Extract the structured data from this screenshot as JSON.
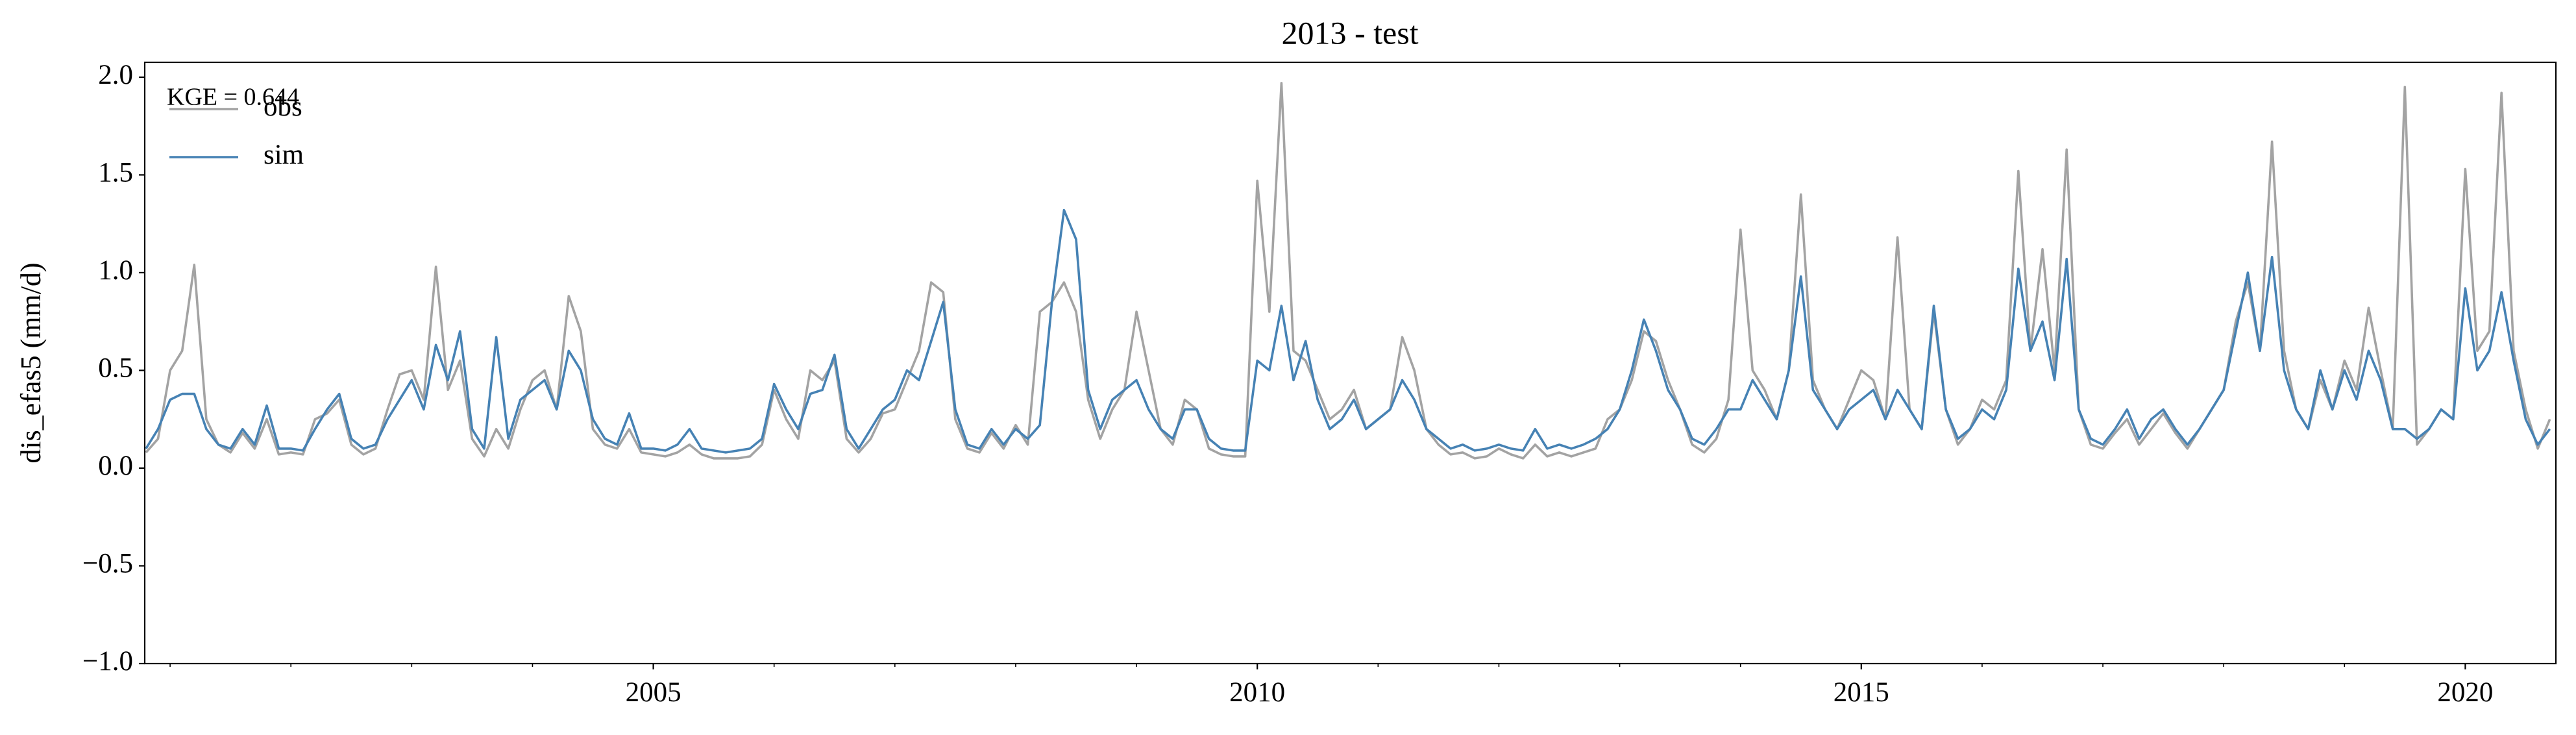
{
  "chart_data": {
    "type": "line",
    "title": "2013 - test",
    "ylabel": "dis_efas5 (mm/d)",
    "annotation": "KGE = 0.644",
    "legend": "upper left",
    "grid": false,
    "xlim": [
      2000.79,
      2020.75
    ],
    "xticks": [
      2005,
      2010,
      2015,
      2020
    ],
    "xminorticks": [
      2001,
      2002,
      2003,
      2004,
      2006,
      2007,
      2008,
      2009,
      2011,
      2012,
      2013,
      2014,
      2016,
      2017,
      2018,
      2019
    ],
    "ylim": [
      -1.0,
      2.076
    ],
    "yticks": [
      {
        "value": -1.0,
        "label": "−1.0"
      },
      {
        "value": -0.5,
        "label": "−0.5"
      },
      {
        "value": 0,
        "label": "0.0"
      },
      {
        "value": 0.5,
        "label": "0.5"
      },
      {
        "value": 1.0,
        "label": "1.0"
      },
      {
        "value": 1.5,
        "label": "1.5"
      },
      {
        "value": 2.0,
        "label": "2.0"
      }
    ],
    "x": [
      2000.8,
      2000.9,
      2001.0,
      2001.1,
      2001.2,
      2001.3,
      2001.4,
      2001.5,
      2001.6,
      2001.7,
      2001.8,
      2001.9,
      2002.0,
      2002.1,
      2002.2,
      2002.3,
      2002.4,
      2002.5,
      2002.6,
      2002.7,
      2002.8,
      2002.9,
      2003.0,
      2003.1,
      2003.2,
      2003.3,
      2003.4,
      2003.5,
      2003.6,
      2003.7,
      2003.8,
      2003.9,
      2004.0,
      2004.1,
      2004.2,
      2004.3,
      2004.4,
      2004.5,
      2004.6,
      2004.7,
      2004.8,
      2004.9,
      2005.0,
      2005.1,
      2005.2,
      2005.3,
      2005.4,
      2005.5,
      2005.6,
      2005.7,
      2005.8,
      2005.9,
      2006.0,
      2006.1,
      2006.2,
      2006.3,
      2006.4,
      2006.5,
      2006.6,
      2006.7,
      2006.8,
      2006.9,
      2007.0,
      2007.1,
      2007.2,
      2007.3,
      2007.4,
      2007.5,
      2007.6,
      2007.7,
      2007.8,
      2007.9,
      2008.0,
      2008.1,
      2008.2,
      2008.3,
      2008.4,
      2008.5,
      2008.6,
      2008.7,
      2008.8,
      2008.9,
      2009.0,
      2009.1,
      2009.2,
      2009.3,
      2009.4,
      2009.5,
      2009.6,
      2009.7,
      2009.8,
      2009.9,
      2010.0,
      2010.1,
      2010.2,
      2010.3,
      2010.4,
      2010.5,
      2010.6,
      2010.7,
      2010.8,
      2010.9,
      2011.0,
      2011.1,
      2011.2,
      2011.3,
      2011.4,
      2011.5,
      2011.6,
      2011.7,
      2011.8,
      2011.9,
      2012.0,
      2012.1,
      2012.2,
      2012.3,
      2012.4,
      2012.5,
      2012.6,
      2012.7,
      2012.8,
      2012.9,
      2013.0,
      2013.1,
      2013.2,
      2013.3,
      2013.4,
      2013.5,
      2013.6,
      2013.7,
      2013.8,
      2013.9,
      2014.0,
      2014.1,
      2014.2,
      2014.3,
      2014.4,
      2014.5,
      2014.6,
      2014.7,
      2014.8,
      2014.9,
      2015.0,
      2015.1,
      2015.2,
      2015.3,
      2015.4,
      2015.5,
      2015.6,
      2015.7,
      2015.8,
      2015.9,
      2016.0,
      2016.1,
      2016.2,
      2016.3,
      2016.4,
      2016.5,
      2016.6,
      2016.7,
      2016.8,
      2016.9,
      2017.0,
      2017.1,
      2017.2,
      2017.3,
      2017.4,
      2017.5,
      2017.6,
      2017.7,
      2017.8,
      2017.9,
      2018.0,
      2018.1,
      2018.2,
      2018.3,
      2018.4,
      2018.5,
      2018.6,
      2018.7,
      2018.8,
      2018.9,
      2019.0,
      2019.1,
      2019.2,
      2019.3,
      2019.4,
      2019.5,
      2019.6,
      2019.7,
      2019.8,
      2019.9,
      2020.0,
      2020.1,
      2020.2,
      2020.3,
      2020.4,
      2020.5,
      2020.6,
      2020.7
    ],
    "series": [
      {
        "name": "obs",
        "color": "#a3a3a3",
        "values": [
          0.08,
          0.15,
          0.5,
          0.6,
          1.04,
          0.25,
          0.12,
          0.08,
          0.18,
          0.1,
          0.25,
          0.07,
          0.08,
          0.07,
          0.25,
          0.28,
          0.35,
          0.12,
          0.07,
          0.1,
          0.3,
          0.48,
          0.5,
          0.35,
          1.03,
          0.4,
          0.55,
          0.15,
          0.06,
          0.2,
          0.1,
          0.3,
          0.45,
          0.5,
          0.3,
          0.88,
          0.7,
          0.2,
          0.12,
          0.1,
          0.2,
          0.08,
          0.07,
          0.06,
          0.08,
          0.12,
          0.07,
          0.05,
          0.05,
          0.05,
          0.06,
          0.12,
          0.4,
          0.25,
          0.15,
          0.5,
          0.45,
          0.55,
          0.15,
          0.08,
          0.15,
          0.28,
          0.3,
          0.45,
          0.6,
          0.95,
          0.9,
          0.25,
          0.1,
          0.08,
          0.18,
          0.1,
          0.22,
          0.12,
          0.8,
          0.85,
          0.95,
          0.8,
          0.35,
          0.15,
          0.3,
          0.4,
          0.8,
          0.5,
          0.2,
          0.12,
          0.35,
          0.3,
          0.1,
          0.07,
          0.06,
          0.06,
          1.47,
          0.8,
          1.97,
          0.6,
          0.55,
          0.4,
          0.25,
          0.3,
          0.4,
          0.2,
          0.25,
          0.3,
          0.67,
          0.5,
          0.2,
          0.12,
          0.07,
          0.08,
          0.05,
          0.06,
          0.1,
          0.07,
          0.05,
          0.12,
          0.06,
          0.08,
          0.06,
          0.08,
          0.1,
          0.25,
          0.3,
          0.45,
          0.7,
          0.65,
          0.45,
          0.3,
          0.12,
          0.08,
          0.15,
          0.35,
          1.22,
          0.5,
          0.4,
          0.25,
          0.5,
          1.4,
          0.45,
          0.3,
          0.2,
          0.35,
          0.5,
          0.45,
          0.25,
          1.18,
          0.3,
          0.2,
          0.8,
          0.3,
          0.12,
          0.2,
          0.35,
          0.3,
          0.45,
          1.52,
          0.6,
          1.12,
          0.5,
          1.63,
          0.3,
          0.12,
          0.1,
          0.18,
          0.25,
          0.12,
          0.2,
          0.28,
          0.18,
          0.1,
          0.2,
          0.3,
          0.4,
          0.75,
          0.95,
          0.6,
          1.67,
          0.6,
          0.3,
          0.2,
          0.45,
          0.3,
          0.55,
          0.4,
          0.82,
          0.5,
          0.2,
          1.95,
          0.12,
          0.2,
          0.3,
          0.25,
          1.53,
          0.6,
          0.7,
          1.92,
          0.6,
          0.3,
          0.1,
          0.25
        ]
      },
      {
        "name": "sim",
        "color": "#4682b4",
        "values": [
          0.1,
          0.2,
          0.35,
          0.38,
          0.38,
          0.2,
          0.12,
          0.1,
          0.2,
          0.12,
          0.32,
          0.1,
          0.1,
          0.09,
          0.2,
          0.3,
          0.38,
          0.15,
          0.1,
          0.12,
          0.25,
          0.35,
          0.45,
          0.3,
          0.63,
          0.45,
          0.7,
          0.2,
          0.1,
          0.67,
          0.15,
          0.35,
          0.4,
          0.45,
          0.3,
          0.6,
          0.5,
          0.25,
          0.15,
          0.12,
          0.28,
          0.1,
          0.1,
          0.09,
          0.12,
          0.2,
          0.1,
          0.09,
          0.08,
          0.09,
          0.1,
          0.15,
          0.43,
          0.3,
          0.2,
          0.38,
          0.4,
          0.58,
          0.2,
          0.1,
          0.2,
          0.3,
          0.35,
          0.5,
          0.45,
          0.65,
          0.85,
          0.3,
          0.12,
          0.1,
          0.2,
          0.12,
          0.2,
          0.15,
          0.22,
          0.85,
          1.32,
          1.17,
          0.4,
          0.2,
          0.35,
          0.4,
          0.45,
          0.3,
          0.2,
          0.15,
          0.3,
          0.3,
          0.15,
          0.1,
          0.09,
          0.09,
          0.55,
          0.5,
          0.83,
          0.45,
          0.65,
          0.35,
          0.2,
          0.25,
          0.35,
          0.2,
          0.25,
          0.3,
          0.45,
          0.35,
          0.2,
          0.15,
          0.1,
          0.12,
          0.09,
          0.1,
          0.12,
          0.1,
          0.09,
          0.2,
          0.1,
          0.12,
          0.1,
          0.12,
          0.15,
          0.2,
          0.3,
          0.5,
          0.76,
          0.6,
          0.4,
          0.3,
          0.15,
          0.12,
          0.2,
          0.3,
          0.3,
          0.45,
          0.35,
          0.25,
          0.5,
          0.98,
          0.4,
          0.3,
          0.2,
          0.3,
          0.35,
          0.4,
          0.25,
          0.4,
          0.3,
          0.2,
          0.83,
          0.3,
          0.15,
          0.2,
          0.3,
          0.25,
          0.4,
          1.02,
          0.6,
          0.75,
          0.45,
          1.07,
          0.3,
          0.15,
          0.12,
          0.2,
          0.3,
          0.15,
          0.25,
          0.3,
          0.2,
          0.12,
          0.2,
          0.3,
          0.4,
          0.7,
          1.0,
          0.6,
          1.08,
          0.5,
          0.3,
          0.2,
          0.5,
          0.3,
          0.5,
          0.35,
          0.6,
          0.45,
          0.2,
          0.2,
          0.15,
          0.2,
          0.3,
          0.25,
          0.92,
          0.5,
          0.6,
          0.9,
          0.55,
          0.25,
          0.12,
          0.2
        ]
      }
    ]
  }
}
